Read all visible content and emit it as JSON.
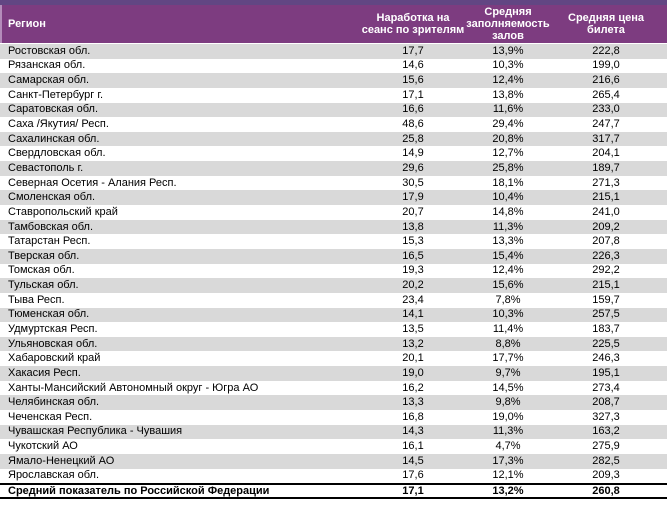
{
  "colors": {
    "top_strip": "#624683",
    "header_bg": "#7d3c80",
    "header_text": "#ffffff",
    "stripe_bg": "#d9d9d9",
    "row_text": "#000000",
    "summary_border": "#000000"
  },
  "chart_data": {
    "type": "table",
    "columns": [
      "Регион",
      "Наработка на сеанс по зрителям",
      "Средняя заполняемость залов",
      "Средняя цена билета"
    ],
    "rows": [
      [
        "Ростовская обл.",
        "17,7",
        "13,9%",
        "222,8"
      ],
      [
        "Рязанская обл.",
        "14,6",
        "10,3%",
        "199,0"
      ],
      [
        "Самарская обл.",
        "15,6",
        "12,4%",
        "216,6"
      ],
      [
        "Санкт-Петербург г.",
        "17,1",
        "13,8%",
        "265,4"
      ],
      [
        "Саратовская обл.",
        "16,6",
        "11,6%",
        "233,0"
      ],
      [
        "Саха /Якутия/ Респ.",
        "48,6",
        "29,4%",
        "247,7"
      ],
      [
        "Сахалинская обл.",
        "25,8",
        "20,8%",
        "317,7"
      ],
      [
        "Свердловская обл.",
        "14,9",
        "12,7%",
        "204,1"
      ],
      [
        "Севастополь г.",
        "29,6",
        "25,8%",
        "189,7"
      ],
      [
        "Северная Осетия - Алания Респ.",
        "30,5",
        "18,1%",
        "271,3"
      ],
      [
        "Смоленская обл.",
        "17,9",
        "10,4%",
        "215,1"
      ],
      [
        "Ставропольский край",
        "20,7",
        "14,8%",
        "241,0"
      ],
      [
        "Тамбовская обл.",
        "13,8",
        "11,3%",
        "209,2"
      ],
      [
        "Татарстан Респ.",
        "15,3",
        "13,3%",
        "207,8"
      ],
      [
        "Тверская обл.",
        "16,5",
        "15,4%",
        "226,3"
      ],
      [
        "Томская обл.",
        "19,3",
        "12,4%",
        "292,2"
      ],
      [
        "Тульская обл.",
        "20,2",
        "15,6%",
        "215,1"
      ],
      [
        "Тыва Респ.",
        "23,4",
        "7,8%",
        "159,7"
      ],
      [
        "Тюменская обл.",
        "14,1",
        "10,3%",
        "257,5"
      ],
      [
        "Удмуртская Респ.",
        "13,5",
        "11,4%",
        "183,7"
      ],
      [
        "Ульяновская обл.",
        "13,2",
        "8,8%",
        "225,5"
      ],
      [
        "Хабаровский край",
        "20,1",
        "17,7%",
        "246,3"
      ],
      [
        "Хакасия Респ.",
        "19,0",
        "9,7%",
        "195,1"
      ],
      [
        "Ханты-Мансийский Автономный округ - Югра АО",
        "16,2",
        "14,5%",
        "273,4"
      ],
      [
        "Челябинская обл.",
        "13,3",
        "9,8%",
        "208,7"
      ],
      [
        "Чеченская Респ.",
        "16,8",
        "19,0%",
        "327,3"
      ],
      [
        "Чувашская Республика - Чувашия",
        "14,3",
        "11,3%",
        "163,2"
      ],
      [
        "Чукотский АО",
        "16,1",
        "4,7%",
        "275,9"
      ],
      [
        "Ямало-Ненецкий АО",
        "14,5",
        "17,3%",
        "282,5"
      ],
      [
        "Ярославская обл.",
        "17,6",
        "12,1%",
        "209,3"
      ]
    ],
    "summary": [
      "Средний показатель по Российской Федерации",
      "17,1",
      "13,2%",
      "260,8"
    ]
  }
}
